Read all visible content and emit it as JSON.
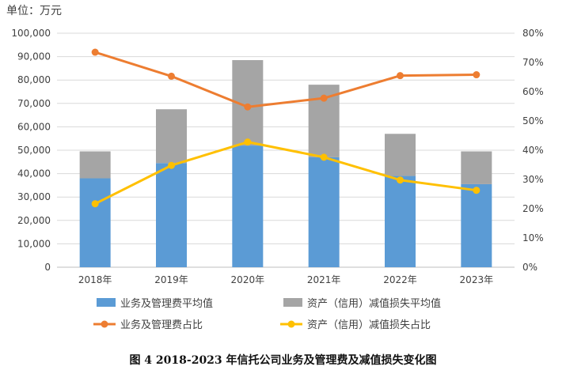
{
  "unit_label": "单位：万元",
  "caption": "图 4    2018-2023 年信托公司业务及管理费及减值损失变化图",
  "chart_data": {
    "type": "bar",
    "stacked": true,
    "categories": [
      "2018年",
      "2019年",
      "2020年",
      "2021年",
      "2022年",
      "2023年"
    ],
    "series": [
      {
        "name": "业务及管理费平均值",
        "kind": "bar",
        "axis": "left",
        "color": "#5b9bd5",
        "values": [
          38000,
          44500,
          52000,
          47000,
          39000,
          35500
        ]
      },
      {
        "name": "资产（信用）减值损失平均值",
        "kind": "bar",
        "axis": "left",
        "color": "#a5a5a5",
        "values": [
          11500,
          23000,
          36500,
          31000,
          18000,
          14000
        ]
      },
      {
        "name": "业务及管理费占比",
        "kind": "line",
        "axis": "right",
        "color": "#ed7d31",
        "values": [
          73.5,
          65.3,
          54.8,
          57.8,
          65.5,
          65.8
        ]
      },
      {
        "name": "资产（信用）减值损失占比",
        "kind": "line",
        "axis": "right",
        "color": "#ffc000",
        "values": [
          21.7,
          34.8,
          42.8,
          37.6,
          29.8,
          26.3
        ]
      }
    ],
    "y_left": {
      "min": 0,
      "max": 100000,
      "step": 10000,
      "ticks": [
        "0",
        "10,000",
        "20,000",
        "30,000",
        "40,000",
        "50,000",
        "60,000",
        "70,000",
        "80,000",
        "90,000",
        "100,000"
      ]
    },
    "y_right": {
      "min": 0,
      "max": 80,
      "step": 10,
      "ticks": [
        "0%",
        "10%",
        "20%",
        "30%",
        "40%",
        "50%",
        "60%",
        "70%",
        "80%"
      ]
    },
    "grid": true,
    "legend": "bottom"
  }
}
